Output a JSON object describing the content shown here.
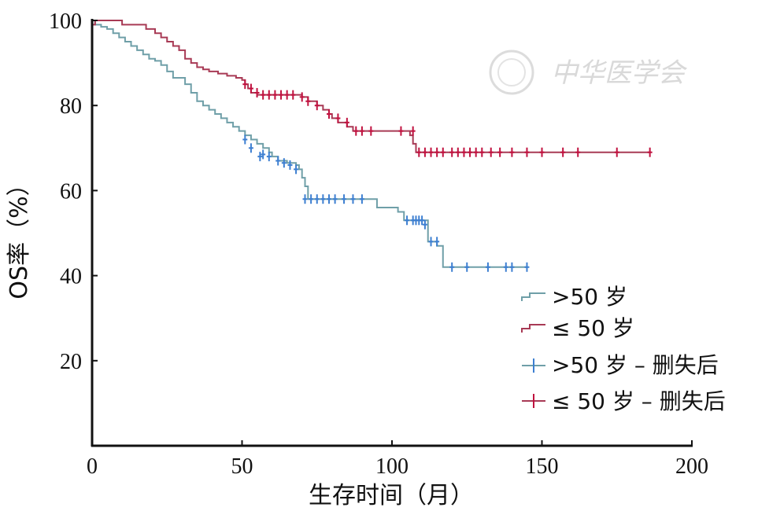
{
  "chart_data": {
    "type": "line",
    "subtype": "kaplan-meier step",
    "xlabel": "生存时间（月）",
    "ylabel": "OS率（%）",
    "xlim": [
      0,
      200
    ],
    "ylim": [
      0,
      100
    ],
    "x_ticks": [
      "0",
      "50",
      "100",
      "150",
      "200"
    ],
    "y_ticks": [
      "20",
      "40",
      "60",
      "80",
      "100"
    ],
    "grid": false,
    "legend_position": "bottom-right",
    "legend": [
      ">50 岁",
      "≤ 50 岁",
      ">50 岁 – 删失后",
      "≤ 50 岁 – 删失后"
    ],
    "watermark": "中华医学会",
    "series": [
      {
        "name": ">50 岁",
        "color": "#6f9fa8",
        "censor_color": "#3d7fd1",
        "steps": [
          [
            0,
            100
          ],
          [
            1,
            99
          ],
          [
            3,
            98.5
          ],
          [
            5,
            98
          ],
          [
            7,
            97
          ],
          [
            9,
            96
          ],
          [
            11,
            95
          ],
          [
            13,
            94
          ],
          [
            15,
            93
          ],
          [
            17,
            92
          ],
          [
            19,
            91
          ],
          [
            21,
            90.5
          ],
          [
            23,
            89.5
          ],
          [
            25,
            88
          ],
          [
            27,
            86.5
          ],
          [
            31,
            85
          ],
          [
            33,
            83
          ],
          [
            35,
            81
          ],
          [
            37,
            80
          ],
          [
            39,
            79
          ],
          [
            41,
            78
          ],
          [
            43,
            77
          ],
          [
            45,
            76
          ],
          [
            47,
            75
          ],
          [
            49,
            74
          ],
          [
            51,
            73
          ],
          [
            53,
            72
          ],
          [
            55,
            71
          ],
          [
            57,
            70
          ],
          [
            59,
            69
          ],
          [
            60,
            68
          ],
          [
            62,
            67
          ],
          [
            65,
            66.5
          ],
          [
            68,
            66
          ],
          [
            69,
            65
          ],
          [
            70,
            63
          ],
          [
            71,
            61
          ],
          [
            72,
            58
          ],
          [
            93,
            58
          ],
          [
            95,
            56
          ],
          [
            102,
            55
          ],
          [
            104,
            53
          ],
          [
            111,
            53
          ],
          [
            112,
            48
          ],
          [
            115,
            47
          ],
          [
            117,
            42
          ],
          [
            145,
            42
          ]
        ],
        "censored": [
          [
            51,
            72
          ],
          [
            53,
            70
          ],
          [
            56,
            68
          ],
          [
            57,
            68.5
          ],
          [
            59,
            68
          ],
          [
            62,
            67
          ],
          [
            64,
            66.5
          ],
          [
            66,
            66
          ],
          [
            68,
            65
          ],
          [
            71,
            58
          ],
          [
            73,
            58
          ],
          [
            75,
            58
          ],
          [
            77,
            58
          ],
          [
            79,
            58
          ],
          [
            81,
            58
          ],
          [
            84,
            58
          ],
          [
            87,
            58
          ],
          [
            90,
            58
          ],
          [
            105,
            53
          ],
          [
            107,
            53
          ],
          [
            108,
            53
          ],
          [
            109,
            53
          ],
          [
            110,
            53
          ],
          [
            111,
            52
          ],
          [
            113,
            48
          ],
          [
            115,
            48
          ],
          [
            120,
            42
          ],
          [
            125,
            42
          ],
          [
            132,
            42
          ],
          [
            138,
            42
          ],
          [
            140,
            42
          ],
          [
            145,
            42
          ]
        ]
      },
      {
        "name": "≤ 50 岁",
        "color": "#a83a55",
        "censor_color": "#c0123f",
        "steps": [
          [
            0,
            99
          ],
          [
            1,
            100
          ],
          [
            9,
            100
          ],
          [
            10,
            99
          ],
          [
            17,
            99
          ],
          [
            18,
            98
          ],
          [
            21,
            97
          ],
          [
            23,
            96
          ],
          [
            25,
            95
          ],
          [
            27,
            94
          ],
          [
            29,
            93
          ],
          [
            31,
            91
          ],
          [
            33,
            90
          ],
          [
            35,
            89
          ],
          [
            37,
            88.5
          ],
          [
            39,
            88
          ],
          [
            42,
            87.5
          ],
          [
            45,
            87
          ],
          [
            48,
            86.5
          ],
          [
            50,
            86
          ],
          [
            51,
            85
          ],
          [
            52,
            84
          ],
          [
            53,
            83
          ],
          [
            55,
            82.5
          ],
          [
            70,
            82
          ],
          [
            72,
            81
          ],
          [
            75,
            80
          ],
          [
            77,
            79
          ],
          [
            79,
            78
          ],
          [
            80,
            77
          ],
          [
            82,
            76
          ],
          [
            85,
            75
          ],
          [
            87,
            74
          ],
          [
            104,
            74
          ],
          [
            106,
            73
          ],
          [
            107,
            71
          ],
          [
            108,
            69
          ],
          [
            186,
            69
          ]
        ],
        "censored": [
          [
            51,
            85
          ],
          [
            53,
            84
          ],
          [
            55,
            83
          ],
          [
            57,
            82.5
          ],
          [
            59,
            82.5
          ],
          [
            61,
            82.5
          ],
          [
            63,
            82.5
          ],
          [
            65,
            82.5
          ],
          [
            67,
            82.5
          ],
          [
            70,
            82
          ],
          [
            72,
            81
          ],
          [
            75,
            80
          ],
          [
            79,
            78
          ],
          [
            82,
            77
          ],
          [
            85,
            76
          ],
          [
            88,
            74
          ],
          [
            90,
            74
          ],
          [
            93,
            74
          ],
          [
            103,
            74
          ],
          [
            107,
            74
          ],
          [
            109,
            69
          ],
          [
            111,
            69
          ],
          [
            113,
            69
          ],
          [
            115,
            69
          ],
          [
            117,
            69
          ],
          [
            120,
            69
          ],
          [
            122,
            69
          ],
          [
            124,
            69
          ],
          [
            126,
            69
          ],
          [
            128,
            69
          ],
          [
            130,
            69
          ],
          [
            133,
            69
          ],
          [
            136,
            69
          ],
          [
            140,
            69
          ],
          [
            145,
            69
          ],
          [
            150,
            69
          ],
          [
            157,
            69
          ],
          [
            162,
            69
          ],
          [
            175,
            69
          ],
          [
            186,
            69
          ]
        ]
      }
    ]
  }
}
